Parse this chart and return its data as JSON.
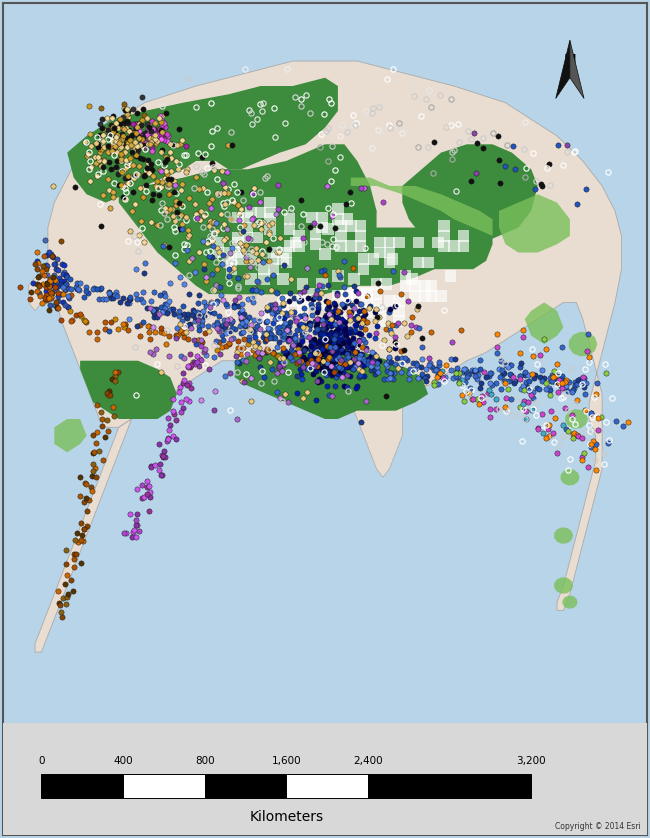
{
  "figure_width": 6.5,
  "figure_height": 8.38,
  "dpi": 100,
  "outer_bg": "#b8d4e8",
  "border_color": "#888888",
  "border_lw": 1.0,
  "alaska_land_color": "#e8ddd0",
  "alaska_dark_green": "#3d8b3d",
  "alaska_light_green": "#7abf5a",
  "alaska_pale_green": "#9ed67a",
  "alaska_med_green": "#5aaa4a",
  "scalebar_ticks": [
    "0",
    "400",
    "800",
    "1,600",
    "2,400",
    "3,200"
  ],
  "scalebar_label": "Kilometers",
  "copyright_text": "Copyright © 2014 Esri",
  "seed": 42
}
